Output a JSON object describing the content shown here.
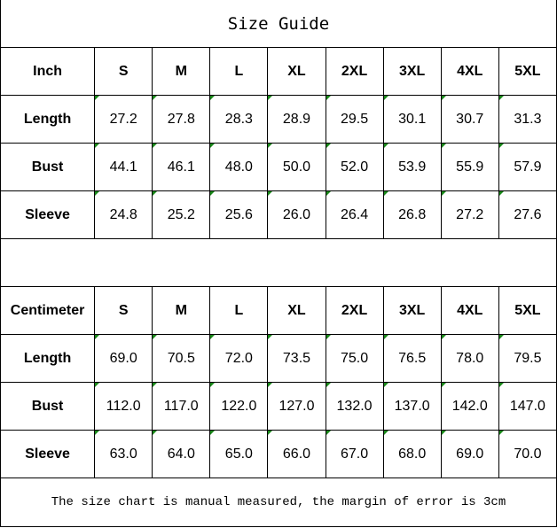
{
  "title": "Size Guide",
  "marker_color": "#1a8a1a",
  "sizes": [
    "S",
    "M",
    "L",
    "XL",
    "2XL",
    "3XL",
    "4XL",
    "5XL"
  ],
  "tables": [
    {
      "unit": "Inch",
      "rows": [
        {
          "label": "Length",
          "values": [
            "27.2",
            "27.8",
            "28.3",
            "28.9",
            "29.5",
            "30.1",
            "30.7",
            "31.3"
          ]
        },
        {
          "label": "Bust",
          "values": [
            "44.1",
            "46.1",
            "48.0",
            "50.0",
            "52.0",
            "53.9",
            "55.9",
            "57.9"
          ]
        },
        {
          "label": "Sleeve",
          "values": [
            "24.8",
            "25.2",
            "25.6",
            "26.0",
            "26.4",
            "26.8",
            "27.2",
            "27.6"
          ]
        }
      ]
    },
    {
      "unit": "Centimeter",
      "rows": [
        {
          "label": "Length",
          "values": [
            "69.0",
            "70.5",
            "72.0",
            "73.5",
            "75.0",
            "76.5",
            "78.0",
            "79.5"
          ]
        },
        {
          "label": "Bust",
          "values": [
            "112.0",
            "117.0",
            "122.0",
            "127.0",
            "132.0",
            "137.0",
            "142.0",
            "147.0"
          ]
        },
        {
          "label": "Sleeve",
          "values": [
            "63.0",
            "64.0",
            "65.0",
            "66.0",
            "67.0",
            "68.0",
            "69.0",
            "70.0"
          ]
        }
      ]
    }
  ],
  "footer": "The size chart is manual measured, the margin of error is 3cm"
}
